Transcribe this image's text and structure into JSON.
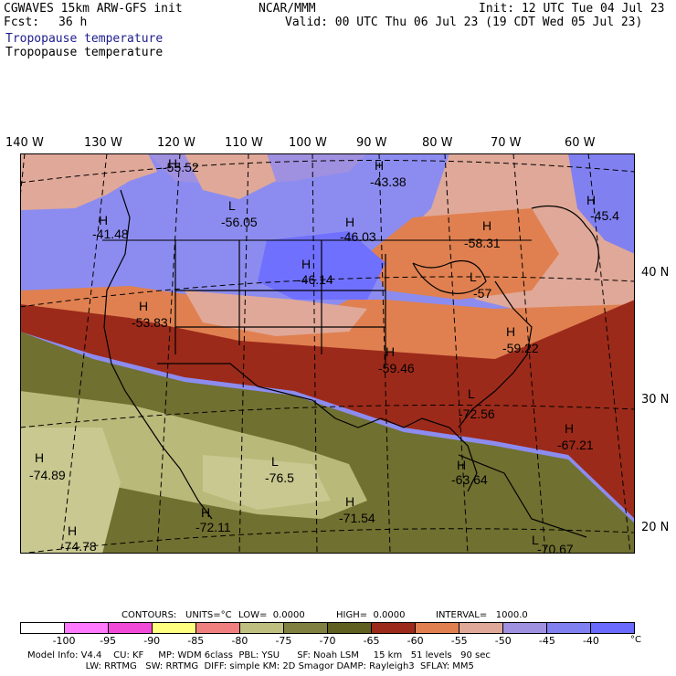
{
  "header": {
    "model_line": "CGWAVES 15km ARW-GFS init",
    "forecast_label": "Fcst:",
    "forecast_value": "36 h",
    "org": "NCAR/MMM",
    "init": "Init: 12 UTC Tue 04 Jul 23",
    "valid": "Valid: 00 UTC Thu 06 Jul 23 (19 CDT Wed 05 Jul 23)",
    "field_title_1": "Tropopause temperature",
    "field_title_2": "Tropopause temperature"
  },
  "longitudes": [
    "140 W",
    "130 W",
    "120 W",
    "110 W",
    "100 W",
    "90 W",
    "80 W",
    "70 W",
    "60 W"
  ],
  "latitudes": [
    "40 N",
    "30 N",
    "20 N"
  ],
  "extrema": [
    {
      "type": "H",
      "value": "-55.52"
    },
    {
      "type": "H",
      "value": "-43.38"
    },
    {
      "type": "H",
      "value": "-41.48"
    },
    {
      "type": "L",
      "value": "-56.05"
    },
    {
      "type": "H",
      "value": "-46.03"
    },
    {
      "type": "H",
      "value": "-58.31"
    },
    {
      "type": "H",
      "value": "-45.4"
    },
    {
      "type": "H",
      "value": "-46.14"
    },
    {
      "type": "H",
      "value": "-53.83"
    },
    {
      "type": "L",
      "value": "-57"
    },
    {
      "type": "H",
      "value": "-59.22"
    },
    {
      "type": "H",
      "value": "-59.46"
    },
    {
      "type": "L",
      "value": "-72.56"
    },
    {
      "type": "H",
      "value": "-67.21"
    },
    {
      "type": "H",
      "value": "-74.89"
    },
    {
      "type": "L",
      "value": "-76.5"
    },
    {
      "type": "H",
      "value": "-63.64"
    },
    {
      "type": "H",
      "value": "-71.54"
    },
    {
      "type": "H",
      "value": "-72.11"
    },
    {
      "type": "H",
      "value": "-74.78"
    },
    {
      "type": "L",
      "value": "-70.67"
    }
  ],
  "contours": {
    "label": "CONTOURS:",
    "units": "UNITS=°C",
    "low": "LOW=  0.0000",
    "high": "HIGH=  0.0000",
    "interval": "INTERVAL=   1000.0"
  },
  "colorbar": {
    "colors": [
      "#ffffff",
      "#ff7aff",
      "#f24ad8",
      "#ffff80",
      "#f08080",
      "#bfc080",
      "#808040",
      "#606020",
      "#9c2a1a",
      "#e08050",
      "#e0a898",
      "#a090e0",
      "#8080f0",
      "#6a6aff"
    ],
    "ticks": [
      "-100",
      "-95",
      "-90",
      "-85",
      "-80",
      "-75",
      "-70",
      "-65",
      "-60",
      "-55",
      "-50",
      "-45",
      "-40"
    ],
    "unit": "°C"
  },
  "footer": {
    "line1": "Model Info: V4.4    CU: KF     MP: WDM 6class  PBL: YSU      SF: Noah LSM     15 km   51 levels   90 sec",
    "line2": "                    LW: RRTMG   SW: RRTMG  DIFF: simple KM: 2D Smagor DAMP: Rayleigh3  SFLAY: MM5"
  },
  "map_colors": {
    "bg_blue": "#8c8cf0",
    "mid_blue": "#7070ff",
    "light_purple": "#a090e0",
    "pink": "#e0a898",
    "orange": "#e08050",
    "dark_red": "#9c2a1a",
    "olive": "#707030",
    "light_olive": "#b9b97a",
    "tan": "#c8c890"
  }
}
